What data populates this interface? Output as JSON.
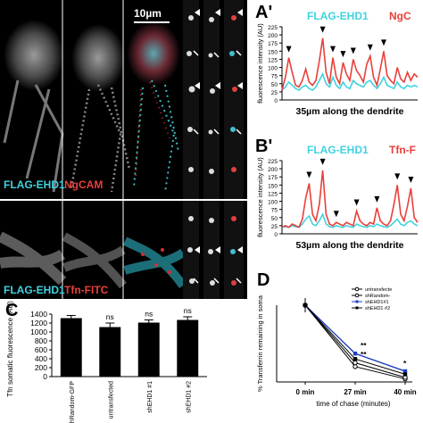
{
  "panels": {
    "top_images": {
      "scale_bar": "10µm",
      "label_a": "FLAG-EHD1",
      "label_b": "NgCAM"
    },
    "bottom_images": {
      "label_a": "FLAG-EHD1",
      "label_b": "Tfn-FITC"
    }
  },
  "colors": {
    "cyan": "#3fd3e0",
    "red": "#e8403a",
    "bar": "#000000",
    "line_untransfected": "#000000",
    "line_shRandom": "#000000",
    "line_shEHD1_1": "#1f3fbf",
    "line_shEHD1_2": "#000000"
  },
  "chart_data": [
    {
      "panel": "A'",
      "type": "line",
      "legend": [
        "FLAG-EHD1",
        "NgC"
      ],
      "xlabel": "35µm along the dendrite",
      "ylabel": "fluorescence intensity (AU)",
      "ylim": [
        0,
        225
      ],
      "yticks": [
        0,
        25,
        50,
        75,
        100,
        125,
        150,
        175,
        200,
        225
      ],
      "x": [
        0,
        2,
        4,
        6,
        8,
        10,
        12,
        14,
        16,
        18,
        20,
        22,
        24,
        26,
        28,
        30,
        32,
        34,
        36,
        38,
        40,
        42,
        44,
        46,
        48,
        50,
        52,
        54,
        56,
        58,
        60,
        62,
        64,
        66,
        68,
        70,
        72,
        74,
        76,
        78,
        80
      ],
      "series": [
        {
          "name": "FLAG-EHD1",
          "values": [
            30,
            40,
            55,
            45,
            35,
            30,
            40,
            45,
            35,
            30,
            40,
            60,
            80,
            50,
            40,
            70,
            45,
            35,
            55,
            40,
            35,
            60,
            50,
            45,
            40,
            55,
            60,
            45,
            35,
            50,
            70,
            45,
            40,
            35,
            55,
            40,
            35,
            45,
            40,
            45,
            40
          ]
        },
        {
          "name": "NgC",
          "values": [
            30,
            70,
            130,
            85,
            45,
            40,
            60,
            95,
            55,
            45,
            60,
            120,
            190,
            85,
            50,
            130,
            70,
            50,
            115,
            80,
            60,
            125,
            90,
            75,
            55,
            110,
            135,
            70,
            45,
            95,
            150,
            75,
            60,
            50,
            100,
            65,
            55,
            85,
            60,
            80,
            70
          ]
        }
      ],
      "arrowheads": 7,
      "arrows": 3
    },
    {
      "panel": "B'",
      "type": "line",
      "legend": [
        "FLAG-EHD1",
        "Tfn-F"
      ],
      "xlabel": "53µm along the dendrite",
      "ylabel": "fluorescence intensity (AU)",
      "ylim": [
        0,
        225
      ],
      "yticks": [
        0,
        25,
        50,
        75,
        100,
        125,
        150,
        175,
        200,
        225
      ],
      "x": [
        0,
        2,
        4,
        6,
        8,
        10,
        12,
        14,
        16,
        18,
        20,
        22,
        24,
        26,
        28,
        30,
        32,
        34,
        36,
        38,
        40,
        42,
        44,
        46,
        48,
        50,
        52,
        54,
        56,
        58,
        60,
        62,
        64,
        66,
        68,
        70,
        72,
        74,
        76,
        78,
        80
      ],
      "series": [
        {
          "name": "FLAG-EHD1",
          "values": [
            20,
            22,
            20,
            25,
            22,
            20,
            30,
            45,
            55,
            30,
            25,
            40,
            60,
            30,
            22,
            20,
            25,
            22,
            20,
            25,
            22,
            20,
            30,
            25,
            22,
            20,
            25,
            22,
            30,
            25,
            22,
            20,
            25,
            35,
            45,
            30,
            25,
            35,
            40,
            30,
            25
          ]
        },
        {
          "name": "Tfn-F",
          "values": [
            20,
            25,
            20,
            30,
            25,
            20,
            45,
            110,
            155,
            60,
            40,
            90,
            195,
            60,
            30,
            25,
            35,
            30,
            25,
            35,
            30,
            25,
            70,
            40,
            30,
            25,
            35,
            30,
            80,
            40,
            30,
            25,
            40,
            90,
            150,
            60,
            40,
            85,
            140,
            50,
            35
          ]
        }
      ],
      "arrowheads": 7,
      "arrows": 2
    },
    {
      "panel": "C",
      "type": "bar",
      "categories": [
        "shRandom-GFP",
        "untransfected",
        "shEHD1 #1",
        "shEHD1 #2"
      ],
      "values": [
        1310,
        1110,
        1210,
        1270
      ],
      "errors": [
        60,
        90,
        60,
        70
      ],
      "annotations": [
        "",
        "ns",
        "ns",
        "ns"
      ],
      "ylabel": "Tfn somatic fluorescence (AU)",
      "ylim": [
        0,
        1400
      ],
      "yticks": [
        0,
        200,
        400,
        600,
        800,
        1000,
        1200,
        1400
      ]
    },
    {
      "panel": "D",
      "type": "line",
      "categories": [
        "0 min",
        "27 min",
        "40 min"
      ],
      "xlabel": "time of chase (minutes)",
      "ylabel": "% Transferrin remaining in soma",
      "legend": [
        "untransfecte",
        "shRandom-",
        "shEHD1#1",
        "shEHD1 #2"
      ],
      "series": [
        {
          "name": "untransfecte",
          "values": [
            100,
            20,
            4
          ]
        },
        {
          "name": "shRandom-",
          "values": [
            100,
            25,
            6
          ]
        },
        {
          "name": "shEHD1#1",
          "values": [
            100,
            37,
            14
          ]
        },
        {
          "name": "shEHD1 #2",
          "values": [
            100,
            30,
            10
          ]
        }
      ],
      "annotations": [
        "**",
        "**",
        "*"
      ],
      "ylim": [
        0,
        100
      ]
    }
  ],
  "panel_letters": {
    "a": "A'",
    "b": "B'",
    "c": "C",
    "d": "D"
  }
}
